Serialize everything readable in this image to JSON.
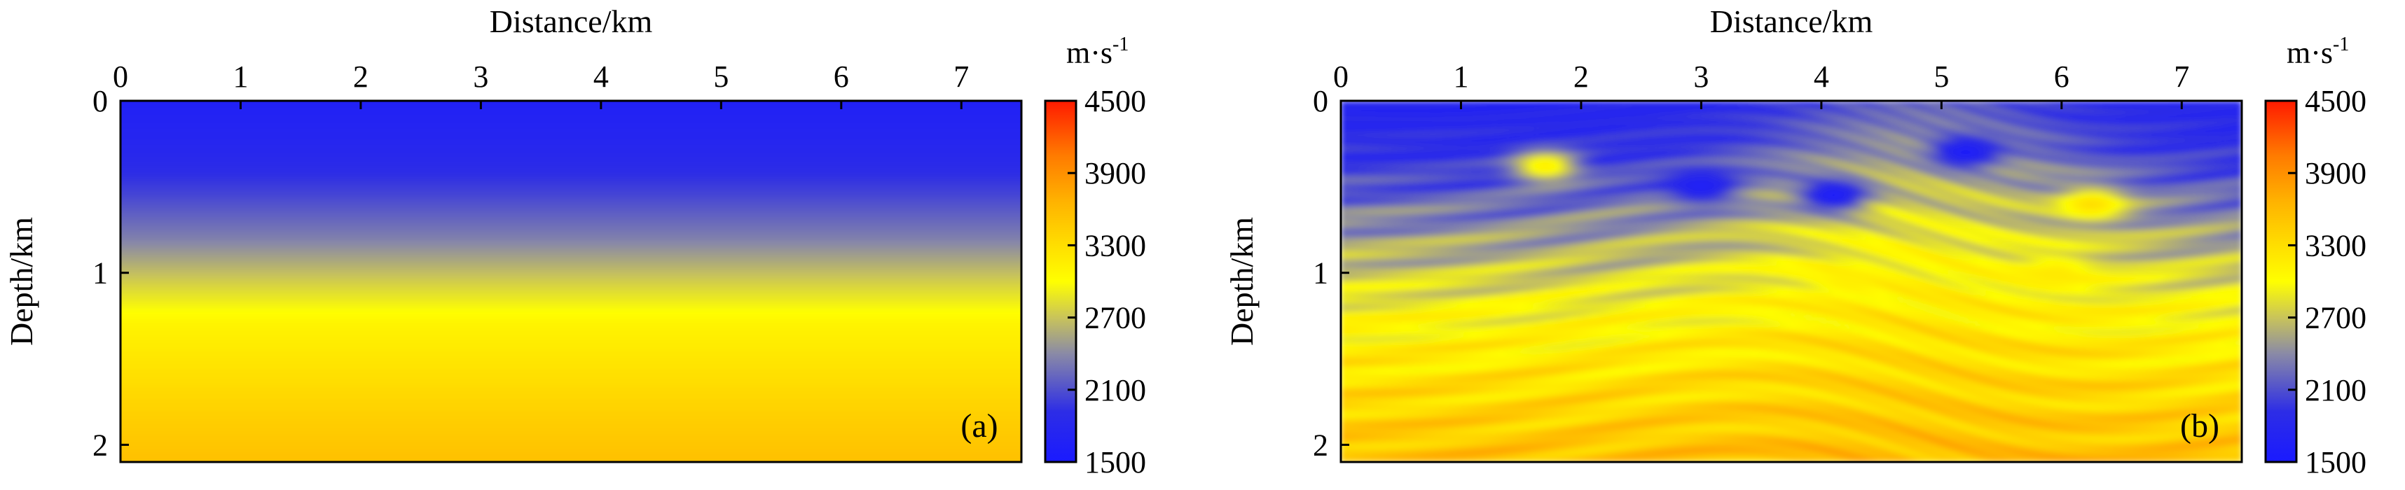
{
  "chart_data": [
    {
      "type": "heatmap",
      "panel_label": "(a)",
      "title": "",
      "xlabel": "Distance/km",
      "ylabel": "Depth/km",
      "xlim": [
        0,
        7.5
      ],
      "ylim": [
        0,
        2.1
      ],
      "xticks": [
        0,
        1,
        2,
        3,
        4,
        5,
        6,
        7
      ],
      "yticks": [
        0,
        1,
        2
      ],
      "colorbar": {
        "unit": "m·s",
        "unit_exponent": "-1",
        "min": 1500,
        "max": 4500,
        "ticks": [
          4500,
          3900,
          3300,
          2700,
          2100,
          1500
        ]
      },
      "description_field": "smooth 1D velocity gradient increasing with depth",
      "depth_velocity_profile": {
        "depth_km": [
          0,
          0.3,
          0.55,
          0.8,
          1.05,
          1.3,
          1.55,
          1.8,
          2.1
        ],
        "velocity_mps": [
          1650,
          1800,
          2050,
          2350,
          2750,
          3100,
          3250,
          3400,
          3550
        ]
      }
    },
    {
      "type": "heatmap",
      "panel_label": "(b)",
      "title": "",
      "xlabel": "Distance/km",
      "ylabel": "Depth/km",
      "xlim": [
        0,
        7.5
      ],
      "ylim": [
        0,
        2.1
      ],
      "xticks": [
        0,
        1,
        2,
        3,
        4,
        5,
        6,
        7
      ],
      "yticks": [
        0,
        1,
        2
      ],
      "colorbar": {
        "unit": "m·s",
        "unit_exponent": "-1",
        "min": 1500,
        "max": 4500,
        "ticks": [
          4500,
          3900,
          3300,
          2700,
          2100,
          1500
        ]
      },
      "description_field": "inverted Marmousi-like velocity model with faulted layers",
      "background_profile": {
        "depth_km": [
          0,
          0.4,
          0.8,
          1.2,
          1.6,
          2.1
        ],
        "velocity_mps": [
          1750,
          2000,
          2500,
          2950,
          3250,
          3550
        ]
      },
      "features": [
        {
          "kind": "high_velocity_lens",
          "x_km": 1.7,
          "z_km": 0.38,
          "velocity_mps": 3150
        },
        {
          "kind": "high_velocity_lens",
          "x_km": 6.25,
          "z_km": 0.6,
          "velocity_mps": 3300
        },
        {
          "kind": "high_velocity_lens",
          "x_km": 5.95,
          "z_km": 1.0,
          "velocity_mps": 3200
        },
        {
          "kind": "high_velocity_lens",
          "x_km": 4.25,
          "z_km": 1.05,
          "velocity_mps": 3150
        },
        {
          "kind": "low_velocity_wedge",
          "x_km": 4.1,
          "z_km": 0.55,
          "velocity_mps": 1600
        },
        {
          "kind": "low_velocity_wedge",
          "x_km": 5.2,
          "z_km": 0.3,
          "velocity_mps": 1600
        },
        {
          "kind": "low_velocity_wedge",
          "x_km": 3.0,
          "z_km": 0.5,
          "velocity_mps": 1650
        }
      ]
    }
  ]
}
